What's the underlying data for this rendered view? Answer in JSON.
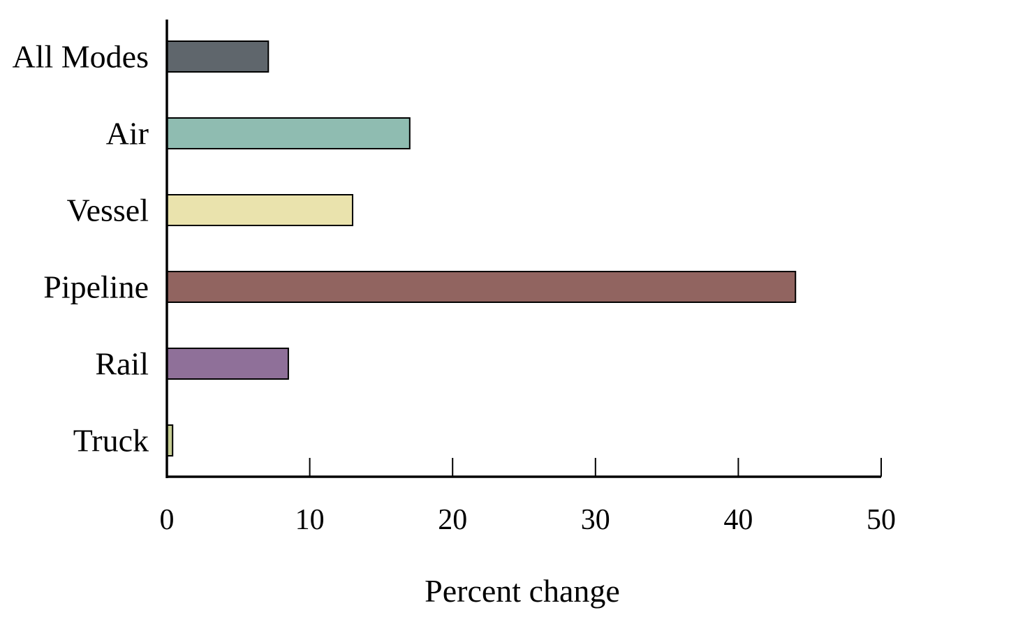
{
  "chart_data": {
    "type": "bar",
    "orientation": "horizontal",
    "categories": [
      "All Modes",
      "Air",
      "Vessel",
      "Pipeline",
      "Rail",
      "Truck"
    ],
    "values": [
      7.1,
      17.0,
      13.0,
      44.0,
      8.5,
      0.4
    ],
    "colors": [
      "#5f666c",
      "#8fbcb1",
      "#eae3ad",
      "#916460",
      "#8f7099",
      "#c5cc93"
    ],
    "xlabel": "Percent change",
    "ylabel": "",
    "xlim": [
      0,
      50
    ],
    "xticks": [
      "0",
      "10",
      "20",
      "30",
      "40",
      "50"
    ],
    "grid": false,
    "legend": "none"
  }
}
